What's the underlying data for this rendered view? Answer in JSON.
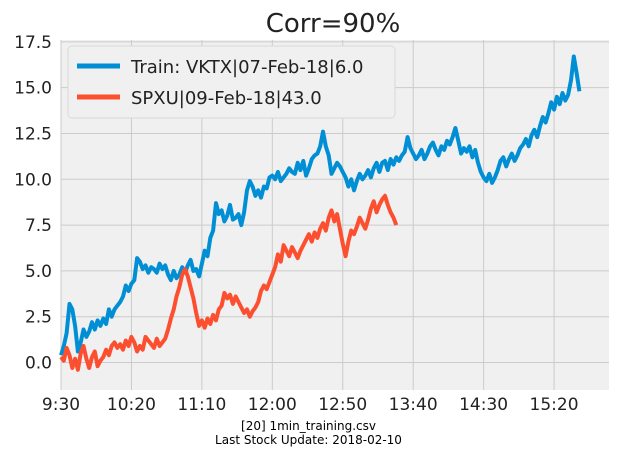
{
  "chart_data": {
    "type": "line",
    "title": "Corr=90%",
    "xlabel": "",
    "ylabel": "",
    "x_ticks": [
      "9:30",
      "10:20",
      "11:10",
      "12:00",
      "12:50",
      "13:40",
      "14:30",
      "15:20"
    ],
    "y_ticks": [
      0.0,
      2.5,
      5.0,
      7.5,
      10.0,
      12.5,
      15.0,
      17.5
    ],
    "ylim": [
      -1.5,
      17.6
    ],
    "xlim_minutes_from_open": [
      0,
      389
    ],
    "x_tick_minutes_from_open": [
      0,
      50,
      100,
      150,
      200,
      250,
      300,
      350
    ],
    "grid": true,
    "legend_position": "upper-left",
    "series": [
      {
        "name": "Train: VKTX|07-Feb-18|6.0",
        "color": "#008fd5",
        "points": [
          [
            0,
            0.4
          ],
          [
            2,
            0.9
          ],
          [
            4,
            1.6
          ],
          [
            6,
            3.2
          ],
          [
            8,
            2.9
          ],
          [
            10,
            2.0
          ],
          [
            12,
            0.6
          ],
          [
            14,
            1.1
          ],
          [
            16,
            1.8
          ],
          [
            18,
            1.4
          ],
          [
            20,
            1.7
          ],
          [
            22,
            2.2
          ],
          [
            24,
            1.8
          ],
          [
            26,
            2.3
          ],
          [
            28,
            2.0
          ],
          [
            30,
            2.4
          ],
          [
            32,
            2.1
          ],
          [
            34,
            2.9
          ],
          [
            36,
            2.5
          ],
          [
            38,
            2.9
          ],
          [
            40,
            3.1
          ],
          [
            42,
            3.3
          ],
          [
            44,
            3.6
          ],
          [
            46,
            4.2
          ],
          [
            48,
            3.9
          ],
          [
            50,
            4.3
          ],
          [
            52,
            4.5
          ],
          [
            54,
            5.7
          ],
          [
            56,
            5.5
          ],
          [
            58,
            5.1
          ],
          [
            60,
            5.3
          ],
          [
            62,
            4.9
          ],
          [
            64,
            5.2
          ],
          [
            66,
            5.1
          ],
          [
            68,
            4.9
          ],
          [
            70,
            5.4
          ],
          [
            72,
            5.1
          ],
          [
            74,
            5.3
          ],
          [
            76,
            4.8
          ],
          [
            78,
            4.5
          ],
          [
            80,
            5.0
          ],
          [
            82,
            4.6
          ],
          [
            84,
            4.8
          ],
          [
            86,
            5.2
          ],
          [
            88,
            4.9
          ],
          [
            90,
            5.3
          ],
          [
            92,
            5.6
          ],
          [
            94,
            5.0
          ],
          [
            96,
            5.1
          ],
          [
            98,
            4.7
          ],
          [
            100,
            5.4
          ],
          [
            102,
            6.1
          ],
          [
            104,
            5.8
          ],
          [
            106,
            6.8
          ],
          [
            108,
            7.2
          ],
          [
            110,
            8.7
          ],
          [
            112,
            8.1
          ],
          [
            114,
            8.3
          ],
          [
            116,
            7.7
          ],
          [
            118,
            8.0
          ],
          [
            120,
            8.6
          ],
          [
            122,
            7.8
          ],
          [
            124,
            7.9
          ],
          [
            126,
            8.1
          ],
          [
            128,
            7.5
          ],
          [
            130,
            8.2
          ],
          [
            132,
            9.4
          ],
          [
            134,
            9.9
          ],
          [
            136,
            9.6
          ],
          [
            138,
            9.1
          ],
          [
            140,
            9.4
          ],
          [
            142,
            9.0
          ],
          [
            144,
            9.6
          ],
          [
            146,
            9.5
          ],
          [
            148,
            10.1
          ],
          [
            150,
            10.2
          ],
          [
            152,
            10.0
          ],
          [
            154,
            10.4
          ],
          [
            156,
            9.9
          ],
          [
            158,
            10.1
          ],
          [
            160,
            10.3
          ],
          [
            162,
            10.6
          ],
          [
            164,
            10.4
          ],
          [
            166,
            10.3
          ],
          [
            168,
            10.9
          ],
          [
            170,
            10.5
          ],
          [
            172,
            11.0
          ],
          [
            174,
            10.2
          ],
          [
            176,
            10.6
          ],
          [
            178,
            11.1
          ],
          [
            180,
            11.3
          ],
          [
            182,
            11.4
          ],
          [
            184,
            11.8
          ],
          [
            186,
            12.6
          ],
          [
            188,
            11.8
          ],
          [
            190,
            11.3
          ],
          [
            192,
            10.3
          ],
          [
            194,
            10.6
          ],
          [
            196,
            10.9
          ],
          [
            198,
            10.7
          ],
          [
            200,
            10.4
          ],
          [
            202,
            10.1
          ],
          [
            204,
            9.6
          ],
          [
            206,
            10.0
          ],
          [
            208,
            9.4
          ],
          [
            210,
            9.9
          ],
          [
            212,
            10.3
          ],
          [
            214,
            10.0
          ],
          [
            216,
            10.2
          ],
          [
            218,
            10.5
          ],
          [
            220,
            10.1
          ],
          [
            222,
            10.6
          ],
          [
            224,
            10.9
          ],
          [
            226,
            10.4
          ],
          [
            228,
            10.9
          ],
          [
            230,
            11.0
          ],
          [
            232,
            10.5
          ],
          [
            234,
            11.1
          ],
          [
            236,
            10.8
          ],
          [
            238,
            11.2
          ],
          [
            240,
            11.0
          ],
          [
            242,
            11.3
          ],
          [
            244,
            11.5
          ],
          [
            246,
            12.3
          ],
          [
            248,
            11.7
          ],
          [
            250,
            11.4
          ],
          [
            252,
            11.1
          ],
          [
            254,
            11.3
          ],
          [
            256,
            11.6
          ],
          [
            258,
            11.1
          ],
          [
            260,
            11.4
          ],
          [
            262,
            11.8
          ],
          [
            264,
            12.0
          ],
          [
            266,
            11.6
          ],
          [
            268,
            11.3
          ],
          [
            270,
            11.8
          ],
          [
            272,
            11.6
          ],
          [
            274,
            12.1
          ],
          [
            276,
            11.9
          ],
          [
            278,
            12.3
          ],
          [
            280,
            12.8
          ],
          [
            282,
            12.1
          ],
          [
            284,
            11.4
          ],
          [
            286,
            11.7
          ],
          [
            288,
            11.5
          ],
          [
            290,
            11.8
          ],
          [
            292,
            11.2
          ],
          [
            294,
            11.6
          ],
          [
            296,
            10.9
          ],
          [
            298,
            10.4
          ],
          [
            300,
            10.1
          ],
          [
            302,
            9.9
          ],
          [
            304,
            10.3
          ],
          [
            306,
            9.8
          ],
          [
            308,
            10.1
          ],
          [
            310,
            10.5
          ],
          [
            312,
            11.0
          ],
          [
            314,
            11.2
          ],
          [
            316,
            10.7
          ],
          [
            318,
            11.1
          ],
          [
            320,
            11.4
          ],
          [
            322,
            11.0
          ],
          [
            324,
            11.3
          ],
          [
            326,
            11.7
          ],
          [
            328,
            11.9
          ],
          [
            330,
            12.2
          ],
          [
            332,
            11.8
          ],
          [
            334,
            12.4
          ],
          [
            336,
            12.7
          ],
          [
            338,
            12.3
          ],
          [
            340,
            12.9
          ],
          [
            342,
            13.4
          ],
          [
            344,
            13.1
          ],
          [
            346,
            13.6
          ],
          [
            348,
            14.2
          ],
          [
            350,
            13.8
          ],
          [
            352,
            14.5
          ],
          [
            354,
            14.1
          ],
          [
            356,
            14.7
          ],
          [
            358,
            14.3
          ],
          [
            360,
            14.6
          ],
          [
            362,
            15.4
          ],
          [
            364,
            16.7
          ],
          [
            366,
            15.8
          ],
          [
            368,
            14.8
          ]
        ]
      },
      {
        "name": "SPXU|09-Feb-18|43.0",
        "color": "#fc4f30",
        "points": [
          [
            0,
            0.3
          ],
          [
            2,
            0.1
          ],
          [
            4,
            0.8
          ],
          [
            6,
            0.4
          ],
          [
            8,
            -0.3
          ],
          [
            10,
            0.2
          ],
          [
            12,
            -0.4
          ],
          [
            14,
            0.5
          ],
          [
            16,
            0.9
          ],
          [
            18,
            0.2
          ],
          [
            20,
            -0.3
          ],
          [
            22,
            0.3
          ],
          [
            24,
            0.6
          ],
          [
            26,
            -0.2
          ],
          [
            28,
            0.1
          ],
          [
            30,
            0.3
          ],
          [
            32,
            0.7
          ],
          [
            34,
            0.4
          ],
          [
            36,
            0.9
          ],
          [
            38,
            1.1
          ],
          [
            40,
            0.8
          ],
          [
            42,
            1.0
          ],
          [
            44,
            0.7
          ],
          [
            46,
            1.2
          ],
          [
            48,
            0.9
          ],
          [
            50,
            1.4
          ],
          [
            52,
            1.1
          ],
          [
            54,
            0.6
          ],
          [
            56,
            0.9
          ],
          [
            58,
            0.7
          ],
          [
            60,
            1.4
          ],
          [
            62,
            1.2
          ],
          [
            64,
            1.0
          ],
          [
            66,
            0.8
          ],
          [
            68,
            1.3
          ],
          [
            70,
            0.9
          ],
          [
            72,
            1.1
          ],
          [
            74,
            1.3
          ],
          [
            76,
            1.8
          ],
          [
            78,
            2.4
          ],
          [
            80,
            2.9
          ],
          [
            82,
            3.6
          ],
          [
            84,
            4.1
          ],
          [
            86,
            4.8
          ],
          [
            88,
            5.1
          ],
          [
            90,
            4.7
          ],
          [
            92,
            4.1
          ],
          [
            94,
            3.5
          ],
          [
            96,
            2.7
          ],
          [
            98,
            2.0
          ],
          [
            100,
            2.3
          ],
          [
            102,
            1.9
          ],
          [
            104,
            2.4
          ],
          [
            106,
            2.1
          ],
          [
            108,
            2.6
          ],
          [
            110,
            2.3
          ],
          [
            112,
            2.9
          ],
          [
            114,
            3.1
          ],
          [
            116,
            3.8
          ],
          [
            118,
            3.5
          ],
          [
            120,
            3.7
          ],
          [
            122,
            3.2
          ],
          [
            124,
            3.6
          ],
          [
            126,
            3.3
          ],
          [
            128,
            3.0
          ],
          [
            130,
            2.7
          ],
          [
            132,
            2.9
          ],
          [
            134,
            2.5
          ],
          [
            136,
            2.8
          ],
          [
            138,
            3.0
          ],
          [
            140,
            3.3
          ],
          [
            142,
            3.9
          ],
          [
            144,
            4.2
          ],
          [
            146,
            4.0
          ],
          [
            148,
            4.4
          ],
          [
            150,
            4.8
          ],
          [
            152,
            5.2
          ],
          [
            154,
            5.9
          ],
          [
            156,
            5.5
          ],
          [
            158,
            6.4
          ],
          [
            160,
            6.1
          ],
          [
            162,
            5.8
          ],
          [
            164,
            6.3
          ],
          [
            166,
            6.0
          ],
          [
            168,
            5.7
          ],
          [
            170,
            6.1
          ],
          [
            172,
            6.4
          ],
          [
            174,
            6.7
          ],
          [
            176,
            7.0
          ],
          [
            178,
            6.6
          ],
          [
            180,
            7.1
          ],
          [
            182,
            6.8
          ],
          [
            184,
            7.3
          ],
          [
            186,
            7.6
          ],
          [
            188,
            7.2
          ],
          [
            190,
            7.9
          ],
          [
            192,
            8.3
          ],
          [
            194,
            7.7
          ],
          [
            196,
            8.1
          ],
          [
            198,
            7.3
          ],
          [
            200,
            6.5
          ],
          [
            202,
            5.8
          ],
          [
            204,
            6.6
          ],
          [
            206,
            7.2
          ],
          [
            208,
            7.0
          ],
          [
            210,
            7.4
          ],
          [
            212,
            7.9
          ],
          [
            214,
            7.6
          ],
          [
            216,
            7.3
          ],
          [
            218,
            7.8
          ],
          [
            220,
            8.4
          ],
          [
            222,
            8.8
          ],
          [
            224,
            8.2
          ],
          [
            226,
            8.6
          ],
          [
            228,
            8.9
          ],
          [
            230,
            9.1
          ],
          [
            232,
            8.6
          ],
          [
            234,
            8.2
          ],
          [
            236,
            7.9
          ],
          [
            238,
            7.5
          ]
        ]
      }
    ]
  },
  "footer": {
    "line1": "[20] 1min_training.csv",
    "line2": "Last Stock Update: 2018-02-10"
  },
  "colors": {
    "plot_bg": "#f0f0f0",
    "grid": "#cbcbcb",
    "text": "#222222"
  }
}
